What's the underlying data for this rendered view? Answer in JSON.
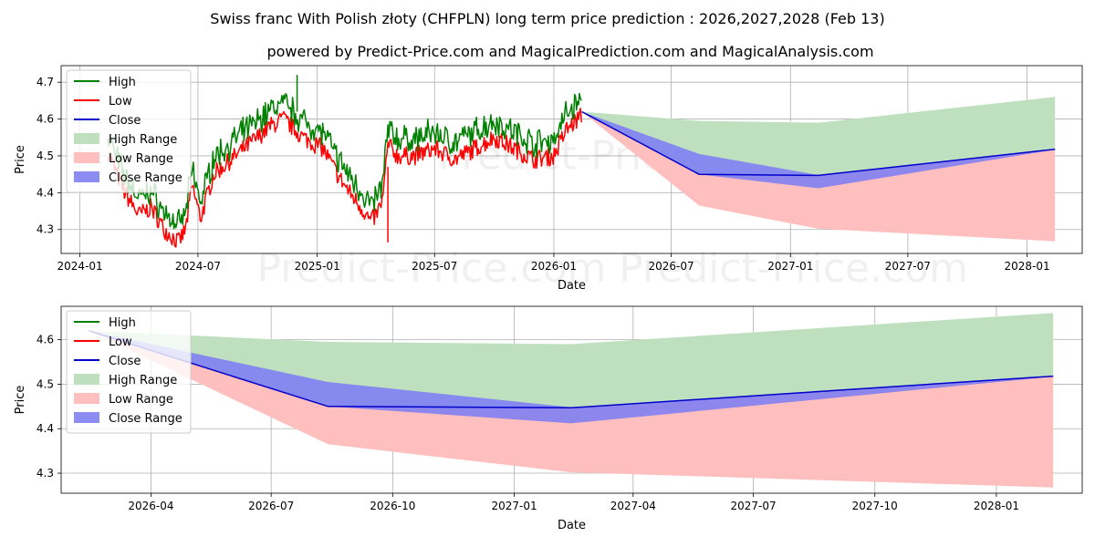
{
  "title": "Swiss franc With Polish złoty (CHFPLN) long term price prediction : 2026,2027,2028 (Feb 13)",
  "subtitle": "powered by Predict-Price.com and MagicalPrediction.com and MagicalAnalysis.com",
  "watermark": "Predict-Price.com",
  "colors": {
    "high": "#008000",
    "low": "#ff0000",
    "close": "#0000cc",
    "high_range": "#bfe0bf",
    "low_range": "#ffbfbf",
    "close_range": "#7f7ff2",
    "grid": "#b0b0b0"
  },
  "chart_data": [
    {
      "type": "line",
      "name": "history-and-forecast",
      "xlabel": "Date",
      "ylabel": "Price",
      "xlim": [
        "2023-12-03",
        "2028-03-26"
      ],
      "ylim": [
        4.235,
        4.745
      ],
      "x_ticks": [
        "2024-01",
        "2024-07",
        "2025-01",
        "2025-07",
        "2026-01",
        "2026-07",
        "2027-01",
        "2027-07",
        "2028-01"
      ],
      "y_ticks": [
        4.3,
        4.4,
        4.5,
        4.6,
        4.7
      ],
      "legend": [
        "High",
        "Low",
        "Close",
        "High Range",
        "Low Range",
        "Close Range"
      ],
      "legend_position": "top-left",
      "history_range": [
        "2024-02-13",
        "2026-02-13"
      ],
      "history_low_anchors": [
        [
          "2024-02-13",
          4.51
        ],
        [
          "2024-03-10",
          4.4
        ],
        [
          "2024-04-01",
          4.34
        ],
        [
          "2024-04-20",
          4.36
        ],
        [
          "2024-05-10",
          4.3
        ],
        [
          "2024-06-01",
          4.265
        ],
        [
          "2024-06-12",
          4.3
        ],
        [
          "2024-06-22",
          4.42
        ],
        [
          "2024-07-05",
          4.33
        ],
        [
          "2024-07-25",
          4.45
        ],
        [
          "2024-08-15",
          4.48
        ],
        [
          "2024-09-10",
          4.52
        ],
        [
          "2024-10-01",
          4.55
        ],
        [
          "2024-10-20",
          4.58
        ],
        [
          "2024-11-10",
          4.6
        ],
        [
          "2024-12-10",
          4.55
        ],
        [
          "2025-01-10",
          4.52
        ],
        [
          "2025-02-01",
          4.45
        ],
        [
          "2025-02-20",
          4.4
        ],
        [
          "2025-03-10",
          4.36
        ],
        [
          "2025-03-25",
          4.32
        ],
        [
          "2025-04-05",
          4.35
        ],
        [
          "2025-04-12",
          4.38
        ],
        [
          "2025-04-20",
          4.53
        ],
        [
          "2025-05-05",
          4.5
        ],
        [
          "2025-06-01",
          4.5
        ],
        [
          "2025-07-01",
          4.52
        ],
        [
          "2025-08-01",
          4.49
        ],
        [
          "2025-09-01",
          4.52
        ],
        [
          "2025-10-01",
          4.55
        ],
        [
          "2025-11-01",
          4.52
        ],
        [
          "2025-12-01",
          4.49
        ],
        [
          "2026-01-01",
          4.5
        ],
        [
          "2026-01-20",
          4.57
        ],
        [
          "2026-02-13",
          4.61
        ]
      ],
      "series": [
        {
          "name": "High",
          "x": [
            "2024-02-13",
            "2026-02-13"
          ],
          "values": [
            4.55,
            4.635
          ]
        },
        {
          "name": "Low",
          "x": [
            "2024-02-13",
            "2026-02-13"
          ],
          "values": [
            4.51,
            4.61
          ]
        },
        {
          "name": "Close",
          "x": [
            "2026-02-13",
            "2026-08-13",
            "2027-02-13",
            "2028-02-13"
          ],
          "values": [
            4.62,
            4.45,
            4.447,
            4.518
          ]
        },
        {
          "name": "High Range",
          "x": [
            "2026-02-13",
            "2026-08-13",
            "2027-02-13",
            "2028-02-13"
          ],
          "upper": [
            4.62,
            4.595,
            4.59,
            4.66
          ],
          "lower": [
            4.62,
            4.45,
            4.447,
            4.518
          ]
        },
        {
          "name": "Low Range",
          "x": [
            "2026-02-13",
            "2026-08-13",
            "2027-02-13",
            "2028-02-13"
          ],
          "upper": [
            4.62,
            4.45,
            4.447,
            4.518
          ],
          "lower": [
            4.62,
            4.365,
            4.302,
            4.268
          ]
        },
        {
          "name": "Close Range",
          "x": [
            "2026-02-13",
            "2026-08-13",
            "2027-02-13",
            "2028-02-13"
          ],
          "upper": [
            4.62,
            4.505,
            4.448,
            4.519
          ],
          "lower": [
            4.62,
            4.45,
            4.412,
            4.517
          ]
        }
      ],
      "notable_points": [
        {
          "label": "peak high",
          "x": "2024-12-01",
          "y": 4.72
        },
        {
          "label": "spike low",
          "x": "2025-04-20",
          "y": 4.265
        }
      ]
    },
    {
      "type": "line",
      "name": "forecast-zoom",
      "xlabel": "Date",
      "ylabel": "Price",
      "xlim": [
        "2026-01-23",
        "2028-03-06"
      ],
      "ylim": [
        4.255,
        4.675
      ],
      "x_ticks": [
        "2026-04",
        "2026-07",
        "2026-10",
        "2027-01",
        "2027-04",
        "2027-07",
        "2027-10",
        "2028-01"
      ],
      "y_ticks": [
        4.3,
        4.4,
        4.5,
        4.6
      ],
      "legend": [
        "High",
        "Low",
        "Close",
        "High Range",
        "Low Range",
        "Close Range"
      ],
      "legend_position": "top-left",
      "series": [
        {
          "name": "Close",
          "x": [
            "2026-02-13",
            "2026-08-13",
            "2027-02-13",
            "2028-02-13"
          ],
          "values": [
            4.62,
            4.45,
            4.447,
            4.518
          ]
        },
        {
          "name": "High Range",
          "x": [
            "2026-02-13",
            "2026-08-13",
            "2027-02-13",
            "2028-02-13"
          ],
          "upper": [
            4.62,
            4.595,
            4.59,
            4.66
          ],
          "lower": [
            4.62,
            4.45,
            4.447,
            4.518
          ]
        },
        {
          "name": "Low Range",
          "x": [
            "2026-02-13",
            "2026-08-13",
            "2027-02-13",
            "2028-02-13"
          ],
          "upper": [
            4.62,
            4.45,
            4.447,
            4.518
          ],
          "lower": [
            4.62,
            4.365,
            4.302,
            4.268
          ]
        },
        {
          "name": "Close Range",
          "x": [
            "2026-02-13",
            "2026-08-13",
            "2027-02-13",
            "2028-02-13"
          ],
          "upper": [
            4.62,
            4.505,
            4.448,
            4.519
          ],
          "lower": [
            4.62,
            4.45,
            4.412,
            4.517
          ]
        }
      ]
    }
  ]
}
